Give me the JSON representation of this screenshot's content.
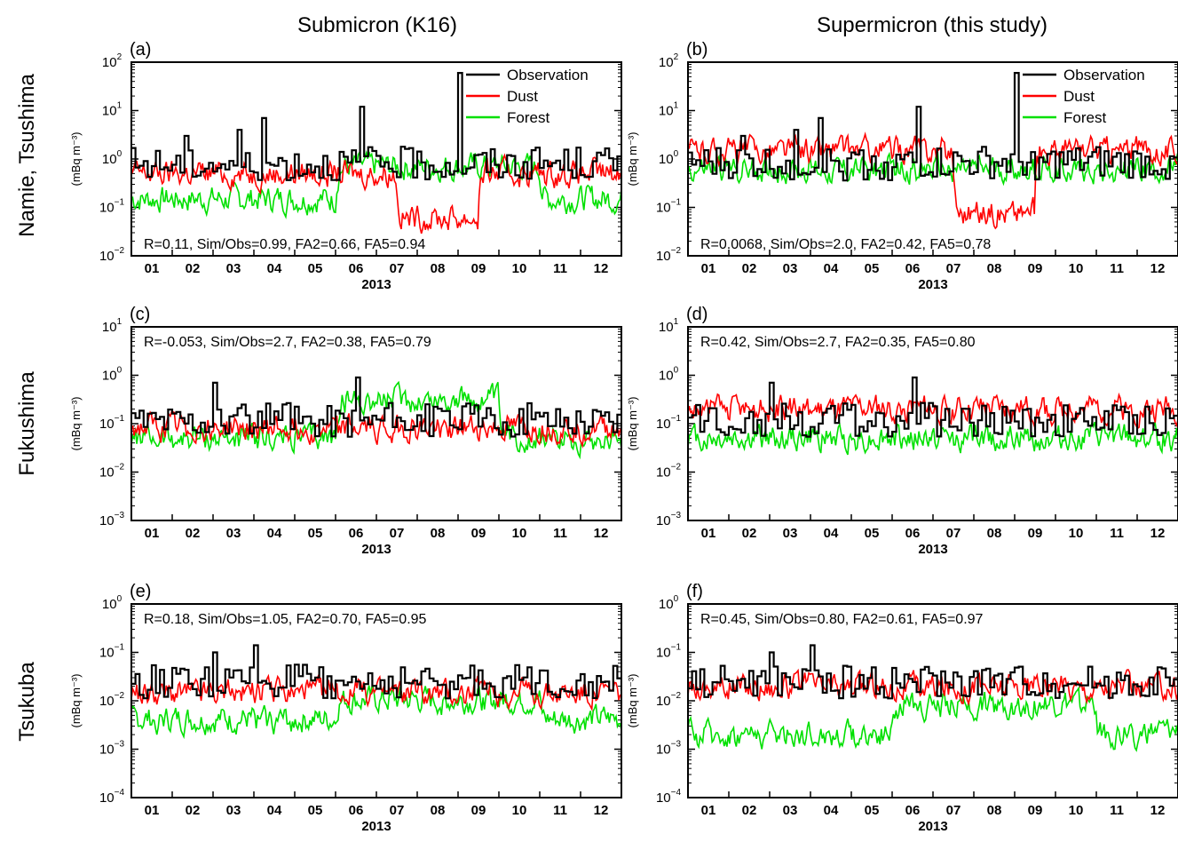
{
  "figure": {
    "col_titles": [
      "Submicron (K16)",
      "Supermicron (this study)"
    ],
    "row_titles": [
      "Namie, Tsushima",
      "Fukushima",
      "Tsukuba"
    ],
    "ylabel": "(mBq m⁻³)",
    "xlabel": "2013",
    "month_ticks": [
      "01",
      "02",
      "03",
      "04",
      "05",
      "06",
      "07",
      "08",
      "09",
      "10",
      "11",
      "12"
    ],
    "legend": [
      {
        "label": "Observation",
        "color": "#000000"
      },
      {
        "label": "Dust",
        "color": "#ff0000"
      },
      {
        "label": "Forest",
        "color": "#00e000"
      }
    ]
  },
  "chart_data": [
    {
      "type": "line",
      "panel": "(a)",
      "location": "Namie, Tsushima",
      "mode": "Submicron (K16)",
      "ylog": true,
      "ylim_exp": [
        -2,
        2
      ],
      "stats": "R=0.11, Sim/Obs=0.99, FA2=0.66, FA5=0.94",
      "legend": true,
      "series": [
        {
          "name": "Observation",
          "color": "#000000",
          "level": 0.8,
          "spikes": [
            [
              1.3,
              3
            ],
            [
              2.6,
              4
            ],
            [
              3.2,
              7
            ],
            [
              5.6,
              12
            ],
            [
              8.0,
              60
            ]
          ]
        },
        {
          "name": "Dust",
          "color": "#ff0000",
          "level": 0.5,
          "dip": [
            [
              6.5,
              8.5,
              0.06
            ]
          ]
        },
        {
          "name": "Forest",
          "color": "#00e000",
          "level": 0.15,
          "rise": [
            [
              5,
              10,
              0.7
            ]
          ]
        }
      ]
    },
    {
      "type": "line",
      "panel": "(b)",
      "location": "Namie, Tsushima",
      "mode": "Supermicron (this study)",
      "ylog": true,
      "ylim_exp": [
        -2,
        2
      ],
      "stats": "R=0.0068, Sim/Obs=2.0, FA2=0.42, FA5=0.78",
      "legend": true,
      "series": [
        {
          "name": "Observation",
          "color": "#000000",
          "level": 0.8,
          "spikes": [
            [
              1.3,
              3
            ],
            [
              2.6,
              4
            ],
            [
              3.2,
              7
            ],
            [
              5.6,
              12
            ],
            [
              8.0,
              60
            ]
          ]
        },
        {
          "name": "Dust",
          "color": "#ff0000",
          "level": 1.5,
          "dip": [
            [
              6.5,
              8.5,
              0.08
            ]
          ]
        },
        {
          "name": "Forest",
          "color": "#00e000",
          "level": 0.6,
          "rise": []
        }
      ]
    },
    {
      "type": "line",
      "panel": "(c)",
      "location": "Fukushima",
      "mode": "Submicron (K16)",
      "ylog": true,
      "ylim_exp": [
        -3,
        1
      ],
      "stats": "R=-0.053, Sim/Obs=2.7, FA2=0.38, FA5=0.79",
      "legend": false,
      "series": [
        {
          "name": "Observation",
          "color": "#000000",
          "level": 0.12,
          "spikes": [
            [
              2.0,
              0.7
            ],
            [
              5.5,
              0.9
            ]
          ]
        },
        {
          "name": "Dust",
          "color": "#ff0000",
          "level": 0.08,
          "dip": []
        },
        {
          "name": "Forest",
          "color": "#00e000",
          "level": 0.05,
          "rise": [
            [
              5,
              9,
              0.3
            ]
          ]
        }
      ]
    },
    {
      "type": "line",
      "panel": "(d)",
      "location": "Fukushima",
      "mode": "Supermicron (this study)",
      "ylog": true,
      "ylim_exp": [
        -3,
        1
      ],
      "stats": "R=0.42, Sim/Obs=2.7, FA2=0.35, FA5=0.80",
      "legend": false,
      "series": [
        {
          "name": "Observation",
          "color": "#000000",
          "level": 0.12,
          "spikes": [
            [
              2.0,
              0.7
            ],
            [
              5.5,
              0.9
            ]
          ]
        },
        {
          "name": "Dust",
          "color": "#ff0000",
          "level": 0.2,
          "dip": []
        },
        {
          "name": "Forest",
          "color": "#00e000",
          "level": 0.05,
          "rise": []
        }
      ]
    },
    {
      "type": "line",
      "panel": "(e)",
      "location": "Tsukuba",
      "mode": "Submicron (K16)",
      "ylog": true,
      "ylim_exp": [
        -4,
        0
      ],
      "stats": "R=0.18, Sim/Obs=1.05, FA2=0.70, FA5=0.95",
      "legend": false,
      "series": [
        {
          "name": "Observation",
          "color": "#000000",
          "level": 0.025,
          "spikes": [
            [
              2.0,
              0.1
            ],
            [
              3.0,
              0.14
            ]
          ]
        },
        {
          "name": "Dust",
          "color": "#ff0000",
          "level": 0.015,
          "dip": []
        },
        {
          "name": "Forest",
          "color": "#00e000",
          "level": 0.004,
          "rise": [
            [
              5,
              10,
              0.01
            ]
          ]
        }
      ]
    },
    {
      "type": "line",
      "panel": "(f)",
      "location": "Tsukuba",
      "mode": "Supermicron (this study)",
      "ylog": true,
      "ylim_exp": [
        -4,
        0
      ],
      "stats": "R=0.45, Sim/Obs=0.80, FA2=0.61, FA5=0.97",
      "legend": false,
      "series": [
        {
          "name": "Observation",
          "color": "#000000",
          "level": 0.025,
          "spikes": [
            [
              2.0,
              0.1
            ],
            [
              3.0,
              0.14
            ]
          ]
        },
        {
          "name": "Dust",
          "color": "#ff0000",
          "level": 0.02,
          "dip": []
        },
        {
          "name": "Forest",
          "color": "#00e000",
          "level": 0.002,
          "rise": [
            [
              5,
              10,
              0.008
            ]
          ]
        }
      ]
    }
  ]
}
